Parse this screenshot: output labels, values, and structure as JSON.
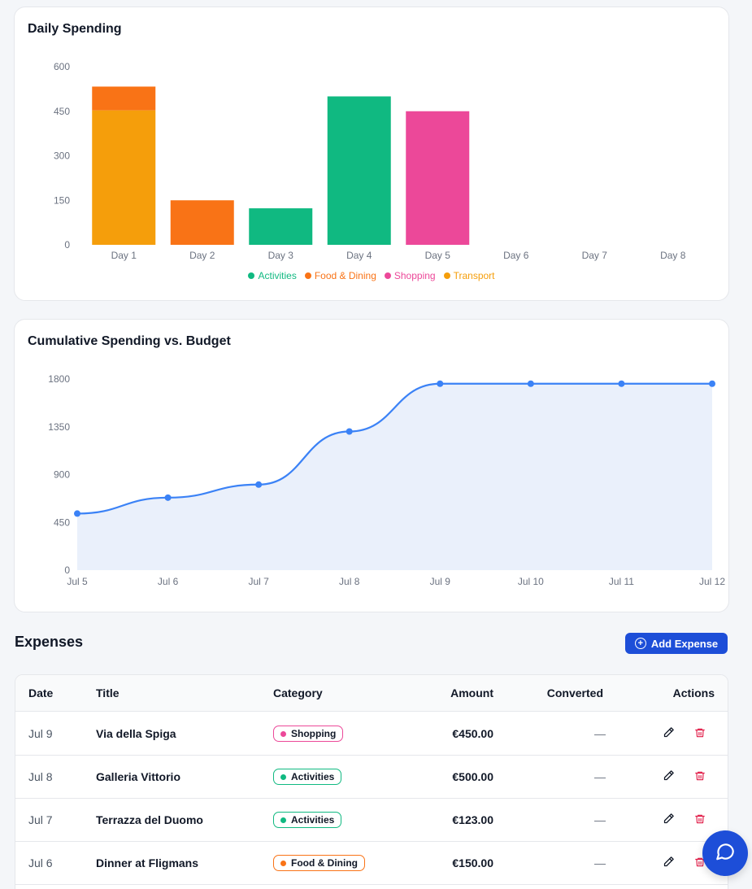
{
  "daily_card": {
    "title": "Daily Spending",
    "legend": [
      {
        "name": "Activities",
        "color": "#10b981"
      },
      {
        "name": "Food & Dining",
        "color": "#f97316"
      },
      {
        "name": "Shopping",
        "color": "#ec4899"
      },
      {
        "name": "Transport",
        "color": "#f59e0b"
      }
    ]
  },
  "cumulative_card": {
    "title": "Cumulative Spending vs. Budget"
  },
  "chart_data": [
    {
      "type": "bar",
      "stacked": true,
      "title": "Daily Spending",
      "categories": [
        "Day 1",
        "Day 2",
        "Day 3",
        "Day 4",
        "Day 5",
        "Day 6",
        "Day 7",
        "Day 8"
      ],
      "series": [
        {
          "name": "Activities",
          "color": "#10b981",
          "values": [
            0,
            0,
            123,
            500,
            0,
            0,
            0,
            0
          ]
        },
        {
          "name": "Food & Dining",
          "color": "#f97316",
          "values": [
            80,
            150,
            0,
            0,
            0,
            0,
            0,
            0
          ]
        },
        {
          "name": "Shopping",
          "color": "#ec4899",
          "values": [
            0,
            0,
            0,
            0,
            450,
            0,
            0,
            0
          ]
        },
        {
          "name": "Transport",
          "color": "#f59e0b",
          "values": [
            453,
            0,
            0,
            0,
            0,
            0,
            0,
            0
          ]
        }
      ],
      "yticks": [
        0,
        150,
        300,
        450,
        600
      ],
      "ylim": [
        0,
        600
      ],
      "legend": "bottom",
      "grid": false
    },
    {
      "type": "area",
      "title": "Cumulative Spending vs. Budget",
      "categories": [
        "Jul 5",
        "Jul 6",
        "Jul 7",
        "Jul 8",
        "Jul 9",
        "Jul 10",
        "Jul 11",
        "Jul 12"
      ],
      "series": [
        {
          "color": "#3b82f6",
          "values": [
            533,
            683,
            806,
            1306,
            1756,
            1756,
            1756,
            1756
          ]
        }
      ],
      "yticks": [
        0,
        450,
        900,
        1350,
        1800
      ],
      "ylim": [
        0,
        1800
      ],
      "grid": false
    }
  ],
  "expenses": {
    "title": "Expenses",
    "add_label": "Add Expense",
    "columns": {
      "date": "Date",
      "title": "Title",
      "category": "Category",
      "amount": "Amount",
      "converted": "Converted",
      "actions": "Actions"
    },
    "rows": [
      {
        "date": "Jul 9",
        "title": "Via della Spiga",
        "category": "Shopping",
        "cat_color": "#ec4899",
        "amount": "€450.00",
        "converted": "—"
      },
      {
        "date": "Jul 8",
        "title": "Galleria Vittorio",
        "category": "Activities",
        "cat_color": "#10b981",
        "amount": "€500.00",
        "converted": "—"
      },
      {
        "date": "Jul 7",
        "title": "Terrazza del Duomo",
        "category": "Activities",
        "cat_color": "#10b981",
        "amount": "€123.00",
        "converted": "—"
      },
      {
        "date": "Jul 6",
        "title": "Dinner at Fligmans",
        "category": "Food & Dining",
        "cat_color": "#f97316",
        "amount": "€150.00",
        "converted": "—"
      }
    ]
  },
  "colors": {
    "accent": "#1d4ed8",
    "line": "#3b82f6",
    "area_fill": "#eaf0fb",
    "delete": "#e11d48"
  }
}
